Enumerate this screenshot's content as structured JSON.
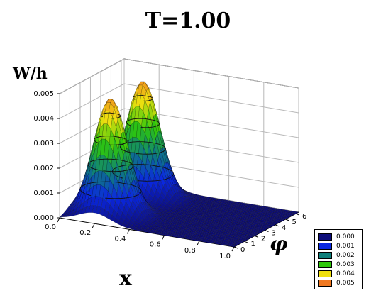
{
  "title": "T=1.00",
  "chart_data": {
    "type": "surface3d",
    "title": "T=1.00",
    "zlabel": "W/h",
    "xlabel": "x",
    "ylabel": "φ",
    "x_ticks": [
      "0.0",
      "0.2",
      "0.4",
      "0.6",
      "0.8",
      "1.0"
    ],
    "y_ticks": [
      "0",
      "1",
      "2",
      "3",
      "4",
      "5",
      "6"
    ],
    "z_ticks": [
      "0.000",
      "0.001",
      "0.002",
      "0.003",
      "0.004",
      "0.005"
    ],
    "xlim": [
      0,
      1
    ],
    "ylim": [
      0,
      6.28
    ],
    "zlim": [
      0,
      0.005
    ],
    "peaks": [
      {
        "x": 0.2,
        "phi": 1.57,
        "W": 0.0047
      },
      {
        "x": 0.2,
        "phi": 4.71,
        "W": 0.0047
      }
    ],
    "contour_levels": [
      0.001,
      0.002,
      0.003,
      0.004
    ],
    "legend": [
      {
        "label": "0.000",
        "color": "#0d0d7a"
      },
      {
        "label": "0.001",
        "color": "#0a28e0"
      },
      {
        "label": "0.002",
        "color": "#0f7f7a"
      },
      {
        "label": "0.003",
        "color": "#2ec80a"
      },
      {
        "label": "0.004",
        "color": "#f0e010"
      },
      {
        "label": "0.005",
        "color": "#f07820"
      }
    ]
  }
}
